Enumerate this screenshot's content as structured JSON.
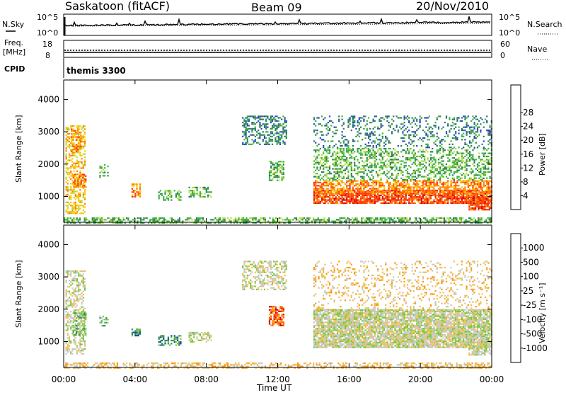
{
  "header": {
    "station": "Saskatoon (fitACF)",
    "beam": "Beam 09",
    "date": "20/Nov/2010"
  },
  "noise_panel": {
    "left_label": "N.Sky",
    "right_label": "N.Search",
    "tick_top": "10^5",
    "tick_bottom": "10^0"
  },
  "freq_panel": {
    "label_line1": "Freq.",
    "label_line2": "[MHz]",
    "right_label": "Nave",
    "left_ticks": [
      "18",
      "8"
    ],
    "right_ticks": [
      "60",
      "0"
    ]
  },
  "cpid_panel": {
    "label": "CPID",
    "program": "themis 3300"
  },
  "colors": {
    "power": [
      "#0a1ee6",
      "#2846c8",
      "#2e7d5a",
      "#3cb43c",
      "#b4dc3c",
      "#ffc800",
      "#ff8200",
      "#ff3c00",
      "#dc0000"
    ],
    "velocity": [
      "#dc0000",
      "#ff5a00",
      "#ff9600",
      "#f0be50",
      "#c8c8c0",
      "#78c83c",
      "#2e8c5a",
      "#1446a0",
      "#0a1ee6"
    ]
  },
  "chart_data": [
    {
      "type": "heatmap",
      "name": "power",
      "xlabel": "",
      "ylabel": "Slant Range [km]",
      "x_range_hours": [
        0,
        24
      ],
      "ylim": [
        200,
        4600
      ],
      "yticks": [
        "1000",
        "2000",
        "3000",
        "4000"
      ],
      "xticks": [
        "00:00",
        "04:00",
        "08:00",
        "12:00",
        "16:00",
        "20:00",
        "00:00"
      ],
      "colorbar_label": "Power [dB]",
      "colorbar_ticks": [
        "4",
        "8",
        "12",
        "16",
        "20",
        "24",
        "28"
      ],
      "regions": [
        {
          "t": [
            0.0,
            24.0
          ],
          "r": [
            200,
            350
          ],
          "level": 3,
          "density": 0.55
        },
        {
          "t": [
            0.1,
            1.2
          ],
          "r": [
            500,
            3200
          ],
          "level": 5,
          "density": 0.5
        },
        {
          "t": [
            0.4,
            1.0
          ],
          "r": [
            2400,
            3100
          ],
          "level": 6,
          "density": 0.6
        },
        {
          "t": [
            0.5,
            1.2
          ],
          "r": [
            1300,
            1700
          ],
          "level": 6,
          "density": 0.6
        },
        {
          "t": [
            2.0,
            2.5
          ],
          "r": [
            1600,
            2000
          ],
          "level": 3,
          "density": 0.4
        },
        {
          "t": [
            3.8,
            4.3
          ],
          "r": [
            1000,
            1400
          ],
          "level": 6,
          "density": 0.6
        },
        {
          "t": [
            5.3,
            6.6
          ],
          "r": [
            900,
            1200
          ],
          "level": 3,
          "density": 0.5
        },
        {
          "t": [
            7.0,
            8.3
          ],
          "r": [
            1000,
            1300
          ],
          "level": 3,
          "density": 0.5
        },
        {
          "t": [
            10.0,
            12.5
          ],
          "r": [
            2600,
            3500
          ],
          "level": 2,
          "density": 0.45
        },
        {
          "t": [
            11.5,
            12.3
          ],
          "r": [
            1500,
            2100
          ],
          "level": 3,
          "density": 0.6
        },
        {
          "t": [
            14.0,
            24.0
          ],
          "r": [
            800,
            1200
          ],
          "level": 7,
          "density": 0.8
        },
        {
          "t": [
            14.0,
            24.0
          ],
          "r": [
            1100,
            1500
          ],
          "level": 6,
          "density": 0.65
        },
        {
          "t": [
            14.0,
            24.0
          ],
          "r": [
            1500,
            2500
          ],
          "level": 3,
          "density": 0.4
        },
        {
          "t": [
            14.0,
            24.0
          ],
          "r": [
            2500,
            3500
          ],
          "level": 2,
          "density": 0.25
        },
        {
          "t": [
            22.7,
            24.0
          ],
          "r": [
            600,
            1000
          ],
          "level": 7,
          "density": 0.8
        }
      ]
    },
    {
      "type": "heatmap",
      "name": "velocity",
      "xlabel": "Time UT",
      "ylabel": "Slant Range [km]",
      "x_range_hours": [
        0,
        24
      ],
      "ylim": [
        200,
        4600
      ],
      "yticks": [
        "1000",
        "2000",
        "3000",
        "4000"
      ],
      "xticks": [
        "00:00",
        "04:00",
        "08:00",
        "12:00",
        "16:00",
        "20:00",
        "00:00"
      ],
      "colorbar_label": "Velocity [m s⁻¹]",
      "colorbar_ticks": [
        "1000",
        "500",
        "100",
        "25",
        "-25",
        "-100",
        "-500",
        "-1000"
      ],
      "regions": [
        {
          "t": [
            0.0,
            24.0
          ],
          "r": [
            200,
            350
          ],
          "level": 3,
          "density": 0.5
        },
        {
          "t": [
            0.1,
            1.2
          ],
          "r": [
            600,
            3200
          ],
          "level": 4,
          "density": 0.5
        },
        {
          "t": [
            0.5,
            1.2
          ],
          "r": [
            1200,
            1900
          ],
          "level": 5,
          "density": 0.6
        },
        {
          "t": [
            2.0,
            2.5
          ],
          "r": [
            1500,
            1800
          ],
          "level": 5,
          "density": 0.5
        },
        {
          "t": [
            3.8,
            4.3
          ],
          "r": [
            1200,
            1400
          ],
          "level": 6,
          "density": 0.7
        },
        {
          "t": [
            5.3,
            6.6
          ],
          "r": [
            900,
            1200
          ],
          "level": 6,
          "density": 0.5
        },
        {
          "t": [
            7.0,
            8.3
          ],
          "r": [
            1000,
            1300
          ],
          "level": 4,
          "density": 0.5
        },
        {
          "t": [
            10.0,
            12.5
          ],
          "r": [
            2600,
            3500
          ],
          "level": 4,
          "density": 0.45
        },
        {
          "t": [
            11.5,
            12.3
          ],
          "r": [
            1500,
            2100
          ],
          "level": 1,
          "density": 0.7
        },
        {
          "t": [
            14.0,
            24.0
          ],
          "r": [
            800,
            2000
          ],
          "level": 4,
          "density": 0.85
        },
        {
          "t": [
            14.0,
            24.0
          ],
          "r": [
            2000,
            3500
          ],
          "level": 3,
          "density": 0.2
        },
        {
          "t": [
            22.7,
            24.0
          ],
          "r": [
            600,
            1000
          ],
          "level": 4,
          "density": 0.8
        }
      ]
    }
  ]
}
